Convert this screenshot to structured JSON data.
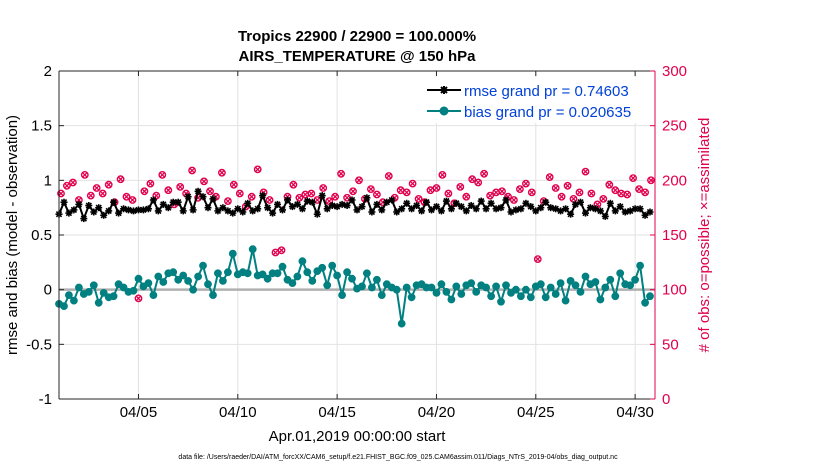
{
  "chart_data": {
    "type": "line",
    "title_line1": "Tropics 22900 / 22900 = 100.000%",
    "title_line2": "AIRS_TEMPERATURE @ 150 hPa",
    "xlabel": "Apr.01,2019 00:00:00 start",
    "ylabel": "rmse and bias (model - observation)",
    "y2label": "# of obs: o=possible; ×=assimilated",
    "xlim": [
      1,
      31
    ],
    "ylim": [
      -1,
      2
    ],
    "y2lim": [
      0,
      300
    ],
    "x_ticks": [
      5,
      10,
      15,
      20,
      25,
      30
    ],
    "x_tick_labels": [
      "04/05",
      "04/10",
      "04/15",
      "04/20",
      "04/25",
      "04/30"
    ],
    "y_ticks": [
      -1,
      -0.5,
      0,
      0.5,
      1,
      1.5,
      2
    ],
    "y_tick_labels": [
      "-1",
      "-0.5",
      "0",
      "0.5",
      "1",
      "1.5",
      "2"
    ],
    "y2_ticks": [
      0,
      50,
      100,
      150,
      200,
      250,
      300
    ],
    "y2_tick_labels": [
      "0",
      "50",
      "100",
      "150",
      "200",
      "250",
      "300"
    ],
    "grid": true,
    "legend_position": "top-right",
    "zero_line": true,
    "series": [
      {
        "name": "rmse grand pr = 0.74603",
        "color": "#000000",
        "marker": "asterisk",
        "x": [
          1.0,
          1.25,
          1.5,
          1.75,
          2.0,
          2.25,
          2.5,
          2.75,
          3.0,
          3.25,
          3.5,
          3.75,
          4.0,
          4.25,
          4.5,
          4.75,
          5.0,
          5.25,
          5.5,
          5.75,
          6.0,
          6.25,
          6.5,
          6.75,
          7.0,
          7.25,
          7.5,
          7.75,
          8.0,
          8.25,
          8.5,
          8.75,
          9.0,
          9.25,
          9.5,
          9.75,
          10.0,
          10.25,
          10.5,
          10.75,
          11.0,
          11.25,
          11.5,
          11.75,
          12.0,
          12.25,
          12.5,
          12.75,
          13.0,
          13.25,
          13.5,
          13.75,
          14.0,
          14.25,
          14.5,
          14.75,
          15.0,
          15.25,
          15.5,
          15.75,
          16.0,
          16.25,
          16.5,
          16.75,
          17.0,
          17.25,
          17.5,
          17.75,
          18.0,
          18.25,
          18.5,
          18.75,
          19.0,
          19.25,
          19.5,
          19.75,
          20.0,
          20.25,
          20.5,
          20.75,
          21.0,
          21.25,
          21.5,
          21.75,
          22.0,
          22.25,
          22.5,
          22.75,
          23.0,
          23.25,
          23.5,
          23.75,
          24.0,
          24.25,
          24.5,
          24.75,
          25.0,
          25.25,
          25.5,
          25.75,
          26.0,
          26.25,
          26.5,
          26.75,
          27.0,
          27.25,
          27.5,
          27.75,
          28.0,
          28.25,
          28.5,
          28.75,
          29.0,
          29.25,
          29.5,
          29.75,
          30.0,
          30.25,
          30.5,
          30.75
        ],
        "values": [
          0.69,
          0.8,
          0.7,
          0.73,
          0.78,
          0.65,
          0.77,
          0.71,
          0.75,
          0.68,
          0.72,
          0.8,
          0.7,
          0.74,
          0.73,
          0.72,
          0.73,
          0.73,
          0.74,
          0.82,
          0.72,
          0.78,
          0.75,
          0.8,
          0.8,
          0.72,
          0.85,
          0.73,
          0.9,
          0.85,
          0.75,
          0.83,
          0.72,
          0.75,
          0.72,
          0.7,
          0.74,
          0.71,
          0.79,
          0.72,
          0.74,
          0.86,
          0.75,
          0.7,
          0.78,
          0.73,
          0.82,
          0.76,
          0.78,
          0.74,
          0.81,
          0.8,
          0.69,
          0.86,
          0.74,
          0.77,
          0.76,
          0.78,
          0.77,
          0.82,
          0.73,
          0.76,
          0.84,
          0.71,
          0.78,
          0.73,
          0.8,
          0.82,
          0.71,
          0.74,
          0.79,
          0.74,
          0.77,
          0.72,
          0.8,
          0.73,
          0.76,
          0.72,
          0.81,
          0.74,
          0.79,
          0.76,
          0.72,
          0.77,
          0.74,
          0.81,
          0.74,
          0.79,
          0.74,
          0.75,
          0.82,
          0.71,
          0.73,
          0.74,
          0.79,
          0.76,
          0.72,
          0.75,
          0.8,
          0.75,
          0.74,
          0.72,
          0.74,
          0.69,
          0.78,
          0.8,
          0.7,
          0.75,
          0.74,
          0.72,
          0.67,
          0.79,
          0.72,
          0.76,
          0.71,
          0.72,
          0.74,
          0.74,
          0.68,
          0.71
        ]
      },
      {
        "name": "bias grand pr = 0.020635",
        "color": "#008080",
        "marker": "circle",
        "x": [
          1.0,
          1.25,
          1.5,
          1.75,
          2.0,
          2.25,
          2.5,
          2.75,
          3.0,
          3.25,
          3.5,
          3.75,
          4.0,
          4.25,
          4.5,
          4.75,
          5.0,
          5.25,
          5.5,
          5.75,
          6.0,
          6.25,
          6.5,
          6.75,
          7.0,
          7.25,
          7.5,
          7.75,
          8.0,
          8.25,
          8.5,
          8.75,
          9.0,
          9.25,
          9.5,
          9.75,
          10.0,
          10.25,
          10.5,
          10.75,
          11.0,
          11.25,
          11.5,
          11.75,
          12.0,
          12.25,
          12.5,
          12.75,
          13.0,
          13.25,
          13.5,
          13.75,
          14.0,
          14.25,
          14.5,
          14.75,
          15.0,
          15.25,
          15.5,
          15.75,
          16.0,
          16.25,
          16.5,
          16.75,
          17.0,
          17.25,
          17.5,
          17.75,
          18.0,
          18.25,
          18.5,
          18.75,
          19.0,
          19.25,
          19.5,
          19.75,
          20.0,
          20.25,
          20.5,
          20.75,
          21.0,
          21.25,
          21.5,
          21.75,
          22.0,
          22.25,
          22.5,
          22.75,
          23.0,
          23.25,
          23.5,
          23.75,
          24.0,
          24.25,
          24.5,
          24.75,
          25.0,
          25.25,
          25.5,
          25.75,
          26.0,
          26.25,
          26.5,
          26.75,
          27.0,
          27.25,
          27.5,
          27.75,
          28.0,
          28.25,
          28.5,
          28.75,
          29.0,
          29.25,
          29.5,
          29.75,
          30.0,
          30.25,
          30.5,
          30.75
        ],
        "values": [
          -0.13,
          -0.15,
          -0.05,
          -0.1,
          0.02,
          -0.04,
          -0.02,
          0.04,
          -0.12,
          -0.03,
          -0.07,
          -0.06,
          0.05,
          0.02,
          -0.02,
          -0.01,
          0.1,
          0.03,
          0.06,
          -0.05,
          0.12,
          0.07,
          0.15,
          0.16,
          0.09,
          0.13,
          0.08,
          0.0,
          0.12,
          0.22,
          0.05,
          -0.05,
          0.15,
          0.08,
          0.16,
          0.33,
          0.14,
          0.16,
          0.15,
          0.37,
          0.13,
          0.14,
          0.1,
          0.15,
          0.15,
          0.21,
          0.09,
          0.06,
          0.12,
          0.26,
          0.16,
          0.08,
          0.17,
          0.2,
          0.04,
          0.22,
          0.13,
          -0.05,
          0.16,
          0.1,
          0.01,
          0.03,
          0.15,
          0.02,
          0.09,
          -0.05,
          0.05,
          0.02,
          0.0,
          -0.31,
          0.02,
          -0.07,
          0.04,
          0.05,
          0.02,
          0.02,
          -0.03,
          0.05,
          -0.02,
          -0.09,
          0.03,
          -0.04,
          0.04,
          0.06,
          -0.02,
          0.04,
          0.02,
          -0.06,
          0.03,
          -0.11,
          0.04,
          -0.03,
          0.0,
          -0.06,
          0.0,
          -0.07,
          0.03,
          0.05,
          -0.07,
          0.02,
          -0.04,
          0.06,
          -0.1,
          0.08,
          0.04,
          -0.02,
          0.12,
          0.05,
          0.07,
          -0.09,
          0.02,
          0.09,
          -0.06,
          0.15,
          0.05,
          0.04,
          0.09,
          0.22,
          -0.12,
          -0.06
        ]
      }
    ],
    "obs_counts": {
      "color": "#e0004e",
      "marker": "possible-and-assimilated",
      "x": [
        1.1,
        1.4,
        1.7,
        2.0,
        2.3,
        2.6,
        2.9,
        3.2,
        3.5,
        3.8,
        4.1,
        4.4,
        4.7,
        5.0,
        5.3,
        5.6,
        5.9,
        6.2,
        6.5,
        6.8,
        7.1,
        7.4,
        7.7,
        8.0,
        8.3,
        8.6,
        8.9,
        9.2,
        9.5,
        9.8,
        10.1,
        10.4,
        10.7,
        11.0,
        11.3,
        11.6,
        11.9,
        12.2,
        12.5,
        12.8,
        13.1,
        13.4,
        13.7,
        14.0,
        14.3,
        14.6,
        14.9,
        15.2,
        15.5,
        15.8,
        16.1,
        16.4,
        16.7,
        17.0,
        17.3,
        17.6,
        17.9,
        18.2,
        18.5,
        18.8,
        19.1,
        19.4,
        19.7,
        20.0,
        20.3,
        20.6,
        20.9,
        21.2,
        21.5,
        21.8,
        22.1,
        22.4,
        22.7,
        23.0,
        23.3,
        23.6,
        23.9,
        24.2,
        24.5,
        24.8,
        25.1,
        25.4,
        25.7,
        26.0,
        26.3,
        26.6,
        26.9,
        27.2,
        27.5,
        27.8,
        28.1,
        28.4,
        28.7,
        29.0,
        29.3,
        29.6,
        29.9,
        30.2,
        30.5,
        30.8
      ],
      "values": [
        188,
        195,
        198,
        182,
        205,
        186,
        193,
        188,
        196,
        180,
        201,
        185,
        182,
        92,
        190,
        197,
        186,
        205,
        191,
        178,
        194,
        188,
        209,
        184,
        199,
        190,
        185,
        207,
        181,
        196,
        188,
        176,
        185,
        210,
        189,
        182,
        134,
        136,
        185,
        196,
        184,
        187,
        188,
        182,
        193,
        181,
        185,
        206,
        184,
        190,
        200,
        183,
        192,
        187,
        180,
        204,
        184,
        191,
        189,
        197,
        183,
        180,
        191,
        193,
        205,
        188,
        179,
        194,
        185,
        201,
        198,
        206,
        186,
        189,
        190,
        185,
        182,
        192,
        197,
        189,
        128,
        181,
        203,
        193,
        185,
        195,
        183,
        189,
        208,
        188,
        178,
        183,
        196,
        191,
        188,
        187,
        202,
        192,
        189,
        200
      ]
    }
  },
  "footer_text": "data file: /Users/raeder/DAI/ATM_forcXX/CAM6_setup/f.e21.FHIST_BGC.f09_025.CAM6assim.011/Diags_NTrS_2019-04/obs_diag_output.nc"
}
